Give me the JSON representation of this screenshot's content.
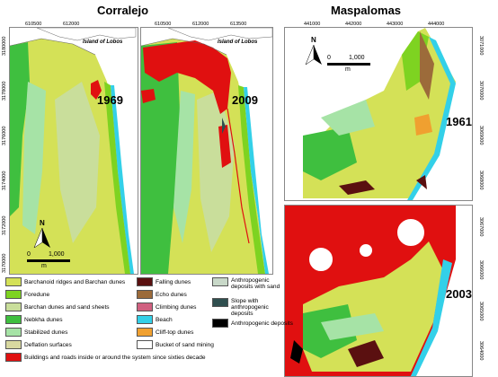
{
  "titles": {
    "corralejo": "Corralejo",
    "maspalomas": "Maspalomas"
  },
  "years": {
    "c1": "1969",
    "c2": "2009",
    "m1": "1961",
    "m2": "2003"
  },
  "island_label": "Island of Lobos",
  "north": "N",
  "corralejo_ticks": {
    "x1": [
      "610500",
      "612000"
    ],
    "x2": [
      "610500",
      "612000",
      "613500"
    ],
    "y": [
      "3180000",
      "3178000",
      "3176000",
      "3174000",
      "3172000",
      "3170000"
    ]
  },
  "maspalomas_ticks": {
    "x": [
      "441000",
      "442000",
      "443000",
      "444000"
    ],
    "y1": [
      "3071000",
      "3070000",
      "3069000",
      "3068000"
    ],
    "y2": [
      "3067000",
      "3066000",
      "3065000",
      "3064000"
    ]
  },
  "scale_c": {
    "zero": "0",
    "max": "1,000",
    "unit": "m"
  },
  "scale_m": {
    "zero": "0",
    "max": "1,000",
    "unit": "m"
  },
  "colors": {
    "barchanoid": "#d4e157",
    "foredune": "#7ed321",
    "barchan": "#c9de9b",
    "nebkha": "#3fbf3f",
    "stabilized": "#a6e3a6",
    "deflation": "#d8d8a0",
    "buildings": "#e01010",
    "falling": "#5a1010",
    "echo": "#9c6b3a",
    "climbing": "#d06080",
    "beach": "#33d0e8",
    "clifftop": "#f0a030",
    "anthro_sand": "#c8d8c8",
    "slope": "#2f4f4f",
    "bucket": "#ffffff",
    "anthro": "#000000"
  },
  "legend": [
    {
      "key": "barchanoid",
      "label": "Barchanoid ridges and Barchan dunes"
    },
    {
      "key": "foredune",
      "label": "Foredune"
    },
    {
      "key": "barchan",
      "label": "Barchan dunes and sand sheets"
    },
    {
      "key": "nebkha",
      "label": "Nebkha dunes"
    },
    {
      "key": "stabilized",
      "label": "Stabilized dunes"
    },
    {
      "key": "deflation",
      "label": "Deflation surfaces"
    },
    {
      "key": "buildings",
      "label": "Buildings and roads inside or around the system since sixties decade"
    },
    {
      "key": "falling",
      "label": "Falling dunes"
    },
    {
      "key": "echo",
      "label": "Echo dunes"
    },
    {
      "key": "climbing",
      "label": "Climbing dunes"
    },
    {
      "key": "beach",
      "label": "Beach"
    },
    {
      "key": "clifftop",
      "label": "Cliff-top dunes"
    },
    {
      "key": "bucket",
      "label": "Bucket of sand mining"
    },
    {
      "key": "anthro_sand",
      "label": "Anthropogenic deposits with sand"
    },
    {
      "key": "slope",
      "label": "Slope with anthropogenic deposits"
    },
    {
      "key": "anthro",
      "label": "Anthropogenic deposits"
    }
  ]
}
